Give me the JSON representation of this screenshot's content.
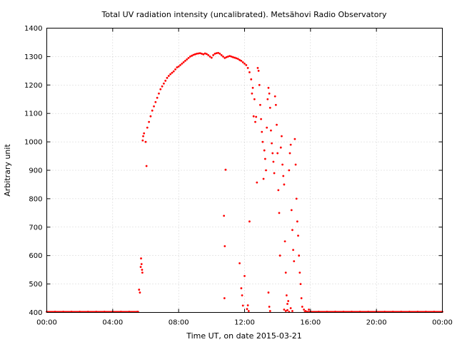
{
  "chart_data": {
    "type": "scatter",
    "title": "Total UV radiation intensity (uncalibrated). Metsähovi Radio Observatory",
    "xlabel": "Time UT, on date 2015-03-21",
    "ylabel": "Arbitrary unit",
    "xlim": [
      0,
      24
    ],
    "ylim": [
      400,
      1400
    ],
    "x_ticks": [
      {
        "value": 0,
        "label": "00:00"
      },
      {
        "value": 4,
        "label": "04:00"
      },
      {
        "value": 8,
        "label": "08:00"
      },
      {
        "value": 12,
        "label": "12:00"
      },
      {
        "value": 16,
        "label": "16:00"
      },
      {
        "value": 20,
        "label": "20:00"
      },
      {
        "value": 24,
        "label": "00:00"
      }
    ],
    "y_ticks": [
      400,
      500,
      600,
      700,
      800,
      900,
      1000,
      1100,
      1200,
      1300,
      1400
    ],
    "grid": true,
    "legend": "none",
    "marker_color": "#ff0000",
    "series": [
      {
        "x_unit": "hours UT",
        "points": [
          [
            0.0,
            400
          ],
          [
            0.5,
            400
          ],
          [
            1.0,
            400
          ],
          [
            1.5,
            400
          ],
          [
            2.0,
            400
          ],
          [
            2.5,
            400
          ],
          [
            3.0,
            400
          ],
          [
            3.5,
            400
          ],
          [
            4.0,
            400
          ],
          [
            4.5,
            400
          ],
          [
            5.0,
            400
          ],
          [
            5.5,
            400
          ],
          [
            5.6,
            480
          ],
          [
            5.65,
            470
          ],
          [
            5.7,
            560
          ],
          [
            5.72,
            590
          ],
          [
            5.75,
            570
          ],
          [
            5.78,
            550
          ],
          [
            5.8,
            540
          ],
          [
            5.82,
            1005
          ],
          [
            5.85,
            1020
          ],
          [
            5.9,
            1030
          ],
          [
            6.0,
            1000
          ],
          [
            6.05,
            915
          ],
          [
            6.1,
            1050
          ],
          [
            6.2,
            1070
          ],
          [
            6.3,
            1090
          ],
          [
            6.4,
            1110
          ],
          [
            6.5,
            1125
          ],
          [
            6.6,
            1140
          ],
          [
            6.7,
            1155
          ],
          [
            6.8,
            1170
          ],
          [
            6.9,
            1185
          ],
          [
            7.0,
            1195
          ],
          [
            7.1,
            1205
          ],
          [
            7.2,
            1215
          ],
          [
            7.3,
            1225
          ],
          [
            7.4,
            1232
          ],
          [
            7.5,
            1238
          ],
          [
            7.6,
            1243
          ],
          [
            7.7,
            1248
          ],
          [
            7.8,
            1255
          ],
          [
            7.9,
            1262
          ],
          [
            8.0,
            1265
          ],
          [
            8.1,
            1270
          ],
          [
            8.2,
            1275
          ],
          [
            8.3,
            1280
          ],
          [
            8.4,
            1285
          ],
          [
            8.5,
            1290
          ],
          [
            8.6,
            1295
          ],
          [
            8.7,
            1300
          ],
          [
            8.8,
            1303
          ],
          [
            8.9,
            1306
          ],
          [
            9.0,
            1308
          ],
          [
            9.1,
            1310
          ],
          [
            9.2,
            1311
          ],
          [
            9.3,
            1312
          ],
          [
            9.4,
            1310
          ],
          [
            9.5,
            1308
          ],
          [
            9.6,
            1311
          ],
          [
            9.7,
            1309
          ],
          [
            9.8,
            1305
          ],
          [
            9.9,
            1300
          ],
          [
            10.0,
            1296
          ],
          [
            10.1,
            1305
          ],
          [
            10.2,
            1310
          ],
          [
            10.3,
            1312
          ],
          [
            10.4,
            1313
          ],
          [
            10.5,
            1310
          ],
          [
            10.6,
            1305
          ],
          [
            10.7,
            1300
          ],
          [
            10.8,
            1295
          ],
          [
            10.85,
            902
          ],
          [
            10.9,
            1298
          ],
          [
            11.0,
            1300
          ],
          [
            11.1,
            1302
          ],
          [
            11.2,
            1300
          ],
          [
            11.3,
            1298
          ],
          [
            11.4,
            1296
          ],
          [
            11.5,
            1294
          ],
          [
            11.6,
            1292
          ],
          [
            11.7,
            1288
          ],
          [
            11.8,
            1285
          ],
          [
            10.75,
            740
          ],
          [
            10.8,
            633
          ],
          [
            10.78,
            450
          ],
          [
            11.7,
            573
          ],
          [
            11.8,
            485
          ],
          [
            11.85,
            460
          ],
          [
            11.9,
            424
          ],
          [
            12.0,
            528
          ],
          [
            11.9,
            1280
          ],
          [
            12.0,
            1275
          ],
          [
            12.1,
            1270
          ],
          [
            12.2,
            1260
          ],
          [
            12.3,
            1245
          ],
          [
            12.4,
            1220
          ],
          [
            12.45,
            1170
          ],
          [
            12.5,
            1190
          ],
          [
            12.55,
            1090
          ],
          [
            12.6,
            1150
          ],
          [
            12.65,
            1070
          ],
          [
            12.7,
            1088
          ],
          [
            12.75,
            857
          ],
          [
            12.8,
            1260
          ],
          [
            12.85,
            1250
          ],
          [
            12.9,
            1200
          ],
          [
            12.95,
            1130
          ],
          [
            13.0,
            1080
          ],
          [
            13.05,
            1035
          ],
          [
            13.1,
            1000
          ],
          [
            13.15,
            870
          ],
          [
            13.2,
            970
          ],
          [
            13.25,
            940
          ],
          [
            13.3,
            900
          ],
          [
            13.35,
            1050
          ],
          [
            13.4,
            1150
          ],
          [
            13.45,
            1190
          ],
          [
            13.5,
            1170
          ],
          [
            13.55,
            1120
          ],
          [
            13.6,
            1040
          ],
          [
            13.65,
            995
          ],
          [
            13.7,
            960
          ],
          [
            13.75,
            930
          ],
          [
            13.8,
            890
          ],
          [
            13.85,
            1160
          ],
          [
            13.9,
            1130
          ],
          [
            13.95,
            1060
          ],
          [
            14.0,
            960
          ],
          [
            14.05,
            830
          ],
          [
            14.1,
            750
          ],
          [
            14.15,
            600
          ],
          [
            14.2,
            980
          ],
          [
            14.25,
            1020
          ],
          [
            14.3,
            920
          ],
          [
            14.35,
            880
          ],
          [
            14.4,
            850
          ],
          [
            14.45,
            650
          ],
          [
            14.5,
            540
          ],
          [
            14.55,
            460
          ],
          [
            14.6,
            430
          ],
          [
            14.65,
            440
          ],
          [
            14.7,
            900
          ],
          [
            14.75,
            960
          ],
          [
            14.8,
            990
          ],
          [
            14.85,
            760
          ],
          [
            14.9,
            690
          ],
          [
            14.95,
            620
          ],
          [
            15.0,
            580
          ],
          [
            15.05,
            1010
          ],
          [
            15.1,
            920
          ],
          [
            15.15,
            800
          ],
          [
            15.2,
            720
          ],
          [
            15.25,
            670
          ],
          [
            15.3,
            600
          ],
          [
            15.35,
            540
          ],
          [
            15.4,
            500
          ],
          [
            15.45,
            450
          ],
          [
            15.5,
            420
          ],
          [
            12.3,
            720
          ],
          [
            12.15,
            412
          ],
          [
            12.2,
            425
          ],
          [
            12.25,
            405
          ],
          [
            13.45,
            470
          ],
          [
            13.5,
            420
          ],
          [
            13.55,
            405
          ],
          [
            14.4,
            410
          ],
          [
            14.5,
            405
          ],
          [
            14.6,
            408
          ],
          [
            14.7,
            402
          ],
          [
            14.8,
            415
          ],
          [
            14.9,
            405
          ],
          [
            15.6,
            410
          ],
          [
            15.7,
            405
          ],
          [
            15.8,
            402
          ],
          [
            15.9,
            410
          ],
          [
            16.0,
            400
          ],
          [
            16.5,
            400
          ],
          [
            17.0,
            400
          ],
          [
            17.5,
            400
          ],
          [
            18.0,
            400
          ],
          [
            18.5,
            400
          ],
          [
            19.0,
            400
          ],
          [
            19.5,
            400
          ],
          [
            20.0,
            400
          ],
          [
            20.5,
            400
          ],
          [
            21.0,
            400
          ],
          [
            21.5,
            400
          ],
          [
            22.0,
            400
          ],
          [
            22.5,
            400
          ],
          [
            23.0,
            400
          ],
          [
            23.5,
            400
          ],
          [
            24.0,
            400
          ]
        ]
      }
    ]
  }
}
